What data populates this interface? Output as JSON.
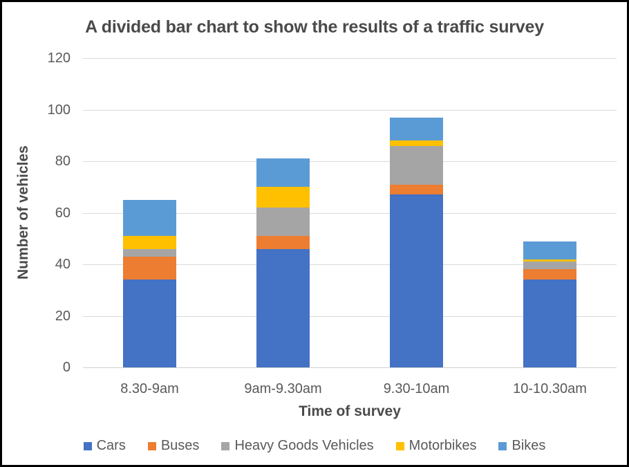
{
  "chart_data": {
    "type": "bar",
    "stacked": true,
    "title": "A divided bar chart to show the results of a traffic survey",
    "xlabel": "Time of survey",
    "ylabel": "Number of vehicles",
    "categories": [
      "8.30-9am",
      "9am-9.30am",
      "9.30-10am",
      "10-10.30am"
    ],
    "series": [
      {
        "name": "Cars",
        "color": "#4472C4",
        "values": [
          34,
          46,
          67,
          34
        ]
      },
      {
        "name": "Buses",
        "color": "#ED7D31",
        "values": [
          9,
          5,
          4,
          4
        ]
      },
      {
        "name": "Heavy Goods Vehicles",
        "color": "#A5A5A5",
        "values": [
          3,
          11,
          15,
          3
        ]
      },
      {
        "name": "Motorbikes",
        "color": "#FFC000",
        "values": [
          5,
          8,
          2,
          1
        ]
      },
      {
        "name": "Bikes",
        "color": "#5B9BD5",
        "values": [
          14,
          11,
          9,
          7
        ]
      }
    ],
    "totals": [
      65,
      81,
      97,
      49
    ],
    "ylim": [
      0,
      120
    ],
    "yticks": [
      0,
      20,
      40,
      60,
      80,
      100,
      120
    ],
    "grid": true,
    "legend_position": "bottom"
  },
  "colors": {
    "gridline": "#D9D9D9",
    "axis_text": "#595959",
    "title_text": "#4A4A4A",
    "frame_border": "#000000",
    "background": "#FFFFFF"
  }
}
